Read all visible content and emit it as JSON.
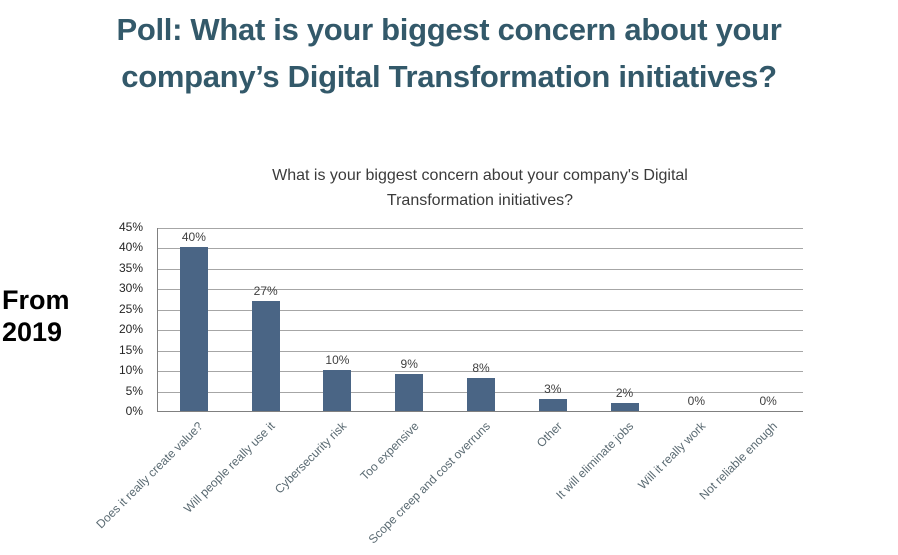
{
  "page": {
    "title_line1": "Poll: What is your biggest concern about your",
    "title_line2": "company’s Digital Transformation initiatives?",
    "title_color": "#33596A",
    "side_label_line1": "From",
    "side_label_line2": "2019"
  },
  "chart_data": {
    "type": "bar",
    "title": "What is your biggest concern about your company's Digital Transformation initiatives?",
    "title_line1": "What is your biggest concern about your company's Digital",
    "title_line2": "Transformation initiatives?",
    "categories": [
      "Does it really create value?",
      "Will people really use it",
      "Cybersecurity risk",
      "Too expensive",
      "Scope creep and cost overruns",
      "Other",
      "It will eliminate jobs",
      "Will it really work",
      "Not reliable enough"
    ],
    "values": [
      40,
      27,
      10,
      9,
      8,
      3,
      2,
      0,
      0
    ],
    "value_labels": [
      "40%",
      "27%",
      "10%",
      "9%",
      "8%",
      "3%",
      "2%",
      "0%",
      "0%"
    ],
    "y_ticks": [
      "0%",
      "5%",
      "10%",
      "15%",
      "20%",
      "25%",
      "30%",
      "35%",
      "40%",
      "45%"
    ],
    "ylim": [
      0,
      45
    ],
    "y_step": 5,
    "grid": true,
    "legend": "none",
    "xlabel": "",
    "ylabel": "",
    "bar_color": "#4A6585",
    "gridline_color": "#A6A6A6",
    "axis_color": "#808080",
    "tick_label_color": "#262626",
    "category_label_color": "#5A6A72",
    "value_label_color": "#404040"
  }
}
